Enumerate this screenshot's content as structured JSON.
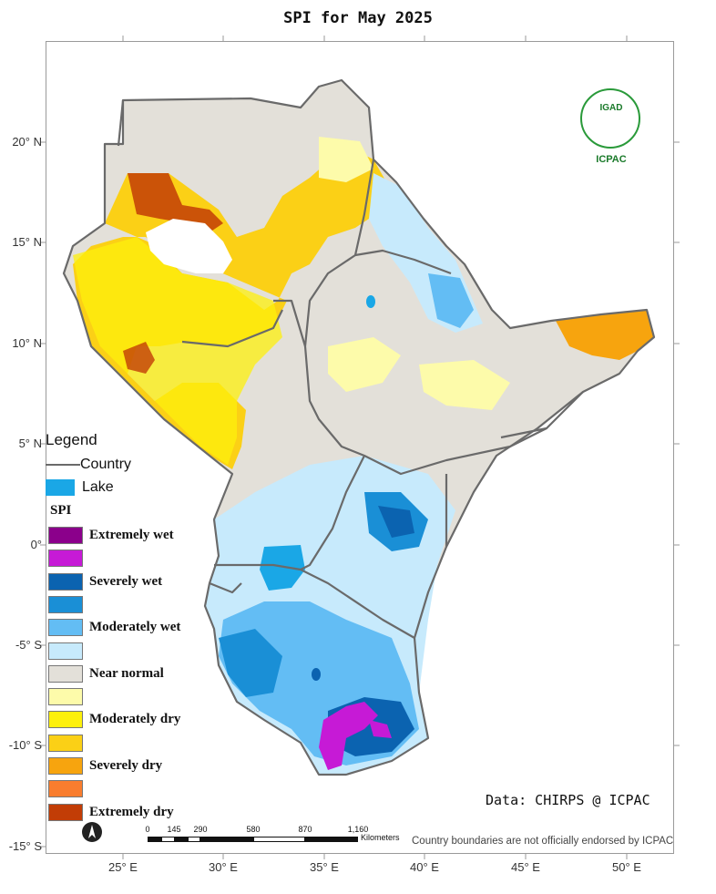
{
  "title": "SPI for May 2025",
  "latitude_labels": [
    "20° N",
    "15° N",
    "10° N",
    "5° N",
    "0°",
    "-5° S",
    "-10° S",
    "-15° S"
  ],
  "longitude_labels": [
    "25° E",
    "30° E",
    "35° E",
    "40° E",
    "45° E",
    "50° E"
  ],
  "legend": {
    "title": "Legend",
    "country_label": "Country",
    "lake_label": "Lake",
    "spi_title": "SPI"
  },
  "spi_classes": [
    {
      "label": "Extremely wet",
      "color": "#8b008b"
    },
    {
      "label": "",
      "color": "#c61ad6"
    },
    {
      "label": "Severely wet",
      "color": "#0b63b0"
    },
    {
      "label": "",
      "color": "#1a8fd6"
    },
    {
      "label": "Moderately wet",
      "color": "#63bdf4"
    },
    {
      "label": "",
      "color": "#c7eafc"
    },
    {
      "label": "Near normal",
      "color": "#e3e0d9"
    },
    {
      "label": "",
      "color": "#fdfbaa"
    },
    {
      "label": "Moderately dry",
      "color": "#fdf00c"
    },
    {
      "label": "",
      "color": "#fbd016"
    },
    {
      "label": "Severely dry",
      "color": "#f7a40e"
    },
    {
      "label": "",
      "color": "#f97d2e"
    },
    {
      "label": "Extremely dry",
      "color": "#c23d06"
    }
  ],
  "country_line_color": "#6a6a6a",
  "lake_color": "#1aa7e6",
  "source": "Data: CHIRPS @ ICPAC",
  "disclaimer": "Country boundaries are not officially endorsed by ICPAC",
  "logo": {
    "top_text": "IGAD",
    "bottom_text": "ICPAC"
  },
  "scale_bar": {
    "ticks": [
      "0",
      "145",
      "290",
      "580",
      "870",
      "1,160"
    ],
    "unit": "Kilometers"
  },
  "north_arrow_icon": "north-arrow-icon"
}
